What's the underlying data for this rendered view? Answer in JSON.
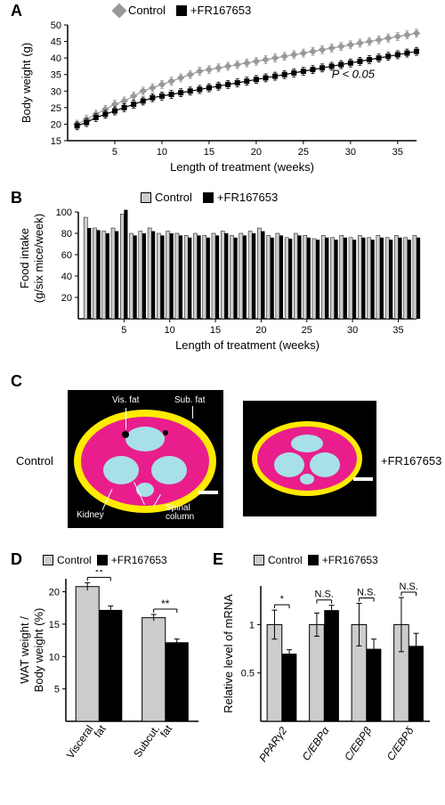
{
  "panelA": {
    "label": "A",
    "type": "line",
    "title_fontsize": 18,
    "legend_items": [
      {
        "name": "Control",
        "color": "#999999",
        "marker": "diamond"
      },
      {
        "name": "+FR167653",
        "color": "#000000",
        "marker": "square"
      }
    ],
    "ylabel": "Body weight (g)",
    "xlabel": "Length of treatment (weeks)",
    "label_fontsize": 13,
    "xlim": [
      0,
      37
    ],
    "xtick_step": 5,
    "ylim": [
      15,
      50
    ],
    "ytick_step": 5,
    "annotation": "P < 0.05",
    "annotation_pos_weeks": 28,
    "control": [
      20,
      21.5,
      23,
      24.5,
      26,
      27,
      28.5,
      30,
      31,
      32,
      33,
      34,
      35,
      36,
      36.5,
      37,
      37.5,
      38,
      38.5,
      39,
      39.5,
      40,
      40.5,
      41,
      41.5,
      42,
      42.5,
      43,
      43.5,
      44,
      44.5,
      45,
      45.5,
      46,
      46.5,
      47,
      47.5
    ],
    "treated": [
      19.5,
      20.5,
      22,
      23,
      24,
      25,
      26,
      27,
      28,
      28.5,
      29,
      29.5,
      30,
      30.5,
      31,
      31.5,
      32,
      32.5,
      33,
      33.5,
      34,
      34.5,
      35,
      35.5,
      36,
      36.5,
      37,
      37.5,
      38,
      38.5,
      39,
      39.5,
      40,
      40.5,
      41,
      41.5,
      42
    ],
    "errorbar": 1.2,
    "background_color": "#ffffff"
  },
  "panelB": {
    "label": "B",
    "type": "bar",
    "legend_items": [
      {
        "name": "Control",
        "color": "#cccccc"
      },
      {
        "name": "+FR167653",
        "color": "#000000"
      }
    ],
    "ylabel": "Food intake\n(g/six mice/week)",
    "xlabel": "Length of treatment (weeks)",
    "label_fontsize": 13,
    "xlim": [
      0,
      37
    ],
    "xtick_step": 5,
    "ylim": [
      0,
      100
    ],
    "ytick_step": 20,
    "control": [
      95,
      85,
      82,
      85,
      98,
      80,
      82,
      85,
      80,
      82,
      80,
      78,
      80,
      78,
      80,
      82,
      78,
      80,
      82,
      85,
      78,
      80,
      76,
      80,
      78,
      75,
      78,
      76,
      78,
      76,
      78,
      76,
      78,
      76,
      78,
      76,
      78
    ],
    "treated": [
      85,
      83,
      80,
      82,
      102,
      78,
      80,
      82,
      78,
      80,
      78,
      76,
      78,
      76,
      78,
      80,
      76,
      78,
      80,
      82,
      76,
      78,
      75,
      78,
      76,
      74,
      76,
      74,
      76,
      74,
      76,
      74,
      76,
      74,
      76,
      74,
      76
    ],
    "bar_width": 0.4,
    "background_color": "#ffffff"
  },
  "panelC": {
    "label": "C",
    "type": "infographic",
    "left_label": "Control",
    "right_label": "+FR167653",
    "vis_fat_color": "#e91e8c",
    "sub_fat_color": "#ffeb00",
    "organ_color": "#a8e0e8",
    "bg_color": "#000000",
    "annotations": {
      "vis_fat": "Vis. fat",
      "sub_fat": "Sub. fat",
      "kidney": "Kidney",
      "spinal": "Spinal\ncolumn"
    },
    "scale_bar": true
  },
  "panelD": {
    "label": "D",
    "type": "bar",
    "legend_items": [
      {
        "name": "Control",
        "color": "#cccccc"
      },
      {
        "name": "+FR167653",
        "color": "#000000"
      }
    ],
    "ylabel": "WAT weight /\nBody weight (%)",
    "categories": [
      "Visceral\nfat",
      "Subcut.\nfat"
    ],
    "control_values": [
      20.8,
      16.0
    ],
    "treated_values": [
      17.2,
      12.2
    ],
    "errors": [
      0.6,
      0.5
    ],
    "sig": [
      "**",
      "**"
    ],
    "ylim": [
      0,
      22
    ],
    "ytick_step": 5,
    "label_fontsize": 13,
    "bar_width": 0.35
  },
  "panelE": {
    "label": "E",
    "type": "bar",
    "legend_items": [
      {
        "name": "Control",
        "color": "#cccccc"
      },
      {
        "name": "+FR167653",
        "color": "#000000"
      }
    ],
    "ylabel": "Relative level of mRNA",
    "categories": [
      "PPARγ2",
      "C/EBPα",
      "C/EBPβ",
      "C/EBPδ"
    ],
    "category_style": "italic",
    "control_values": [
      1.0,
      1.0,
      1.0,
      1.0
    ],
    "treated_values": [
      0.7,
      1.15,
      0.75,
      0.78
    ],
    "control_errors": [
      0.15,
      0.12,
      0.22,
      0.28
    ],
    "treated_errors": [
      0.04,
      0.05,
      0.1,
      0.13
    ],
    "sig": [
      "*",
      "N.S.",
      "N.S.",
      "N.S."
    ],
    "ylim": [
      0,
      1.4
    ],
    "ytick_step": 0.5,
    "label_fontsize": 13,
    "bar_width": 0.35
  }
}
